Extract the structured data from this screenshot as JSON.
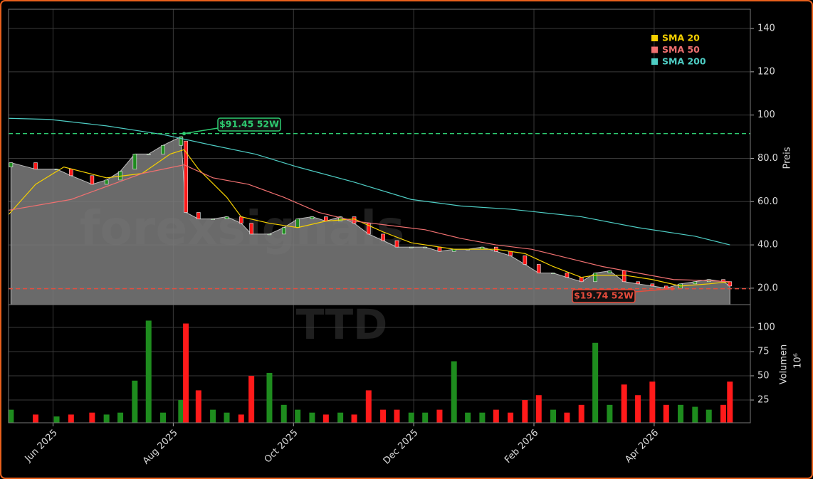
{
  "chart_data": {
    "type": "candlestick",
    "x": [
      4.3,
      4.71,
      5.06,
      5.3,
      5.65,
      5.89,
      6.12,
      6.36,
      6.59,
      6.83,
      7.13,
      7.21,
      7.42,
      7.66,
      7.89,
      8.13,
      8.3,
      8.6,
      8.84,
      9.07,
      9.31,
      9.54,
      9.78,
      10.01,
      10.25,
      10.49,
      10.72,
      10.96,
      11.19,
      11.43,
      11.67,
      11.9,
      12.14,
      12.37,
      12.61,
      12.85,
      13.08,
      13.32,
      13.55,
      13.79,
      14.02,
      14.26,
      14.5,
      14.73,
      14.97,
      15.2,
      15.44,
      15.68,
      15.91,
      16.15,
      16.26
    ],
    "open": [
      76,
      78,
      75,
      75,
      72,
      68,
      70,
      75,
      82,
      82,
      86,
      88,
      55,
      52,
      52,
      53,
      50,
      45,
      45,
      48,
      52,
      53,
      51,
      53,
      50,
      45,
      42,
      39,
      39,
      39,
      37,
      38,
      38,
      39,
      37,
      35,
      31,
      27,
      27,
      25,
      23,
      27,
      28,
      23,
      22,
      21,
      20,
      22,
      23,
      24,
      23
    ],
    "close": [
      78,
      75,
      75,
      72,
      68,
      70,
      74,
      82,
      82,
      86,
      90,
      55,
      52,
      52,
      53,
      50,
      45,
      45,
      48,
      52,
      53,
      51,
      53,
      50,
      45,
      42,
      39,
      39,
      39,
      37,
      38,
      38,
      39,
      37,
      35,
      31,
      27,
      27,
      25,
      23,
      27,
      28,
      23,
      22,
      21,
      20,
      22,
      23,
      24,
      23,
      21
    ],
    "volume": [
      15,
      10,
      8,
      10,
      12,
      10,
      12,
      45,
      107,
      12,
      25,
      104,
      35,
      15,
      12,
      10,
      50,
      53,
      20,
      15,
      12,
      10,
      12,
      10,
      35,
      15,
      15,
      12,
      12,
      15,
      65,
      12,
      12,
      15,
      12,
      25,
      30,
      15,
      12,
      20,
      84,
      20,
      41,
      30,
      44,
      20,
      20,
      18,
      15,
      20,
      44
    ],
    "up_color": "#1e8c1e",
    "down_color": "#ff1a1a",
    "area_color": "#7c7c7c",
    "xlim": [
      4.26,
      16.6
    ],
    "xticks": [
      {
        "value": 5,
        "label": "Jun 2025"
      },
      {
        "value": 7,
        "label": "Aug 2025"
      },
      {
        "value": 9,
        "label": "Oct 2025"
      },
      {
        "value": 11,
        "label": "Dec 2025"
      },
      {
        "value": 13,
        "label": "Feb 2026"
      },
      {
        "value": 15,
        "label": "Apr 2026"
      }
    ],
    "grid": true,
    "price_panel": {
      "ylabel": "Preis",
      "ylim": [
        12.4,
        148.9
      ],
      "yticks": [
        {
          "value": 20,
          "label": "20.0"
        },
        {
          "value": 40,
          "label": "40.0"
        },
        {
          "value": 60,
          "label": "60.0"
        },
        {
          "value": 80,
          "label": "80.0"
        },
        {
          "value": 100,
          "label": "100"
        },
        {
          "value": 120,
          "label": "120"
        },
        {
          "value": 140,
          "label": "140"
        }
      ]
    },
    "volume_panel": {
      "ylabel": "Volumen",
      "offset_label": "10⁶",
      "ylim": [
        1.5,
        123.5
      ],
      "yticks": [
        25,
        50,
        75,
        100
      ]
    },
    "sma": [
      {
        "name": "SMA 20",
        "color": "#f5d000",
        "x": [
          4.26,
          4.71,
          5.18,
          5.89,
          6.48,
          6.95,
          7.18,
          7.42,
          7.89,
          8.13,
          8.6,
          9.07,
          9.54,
          10.01,
          10.49,
          10.96,
          11.67,
          12.37,
          12.85,
          13.32,
          13.79,
          14.02,
          14.5,
          14.97,
          15.44,
          15.91,
          16.26
        ],
        "values": [
          54,
          68,
          76,
          71,
          73,
          82,
          84,
          75,
          62,
          53,
          50,
          48,
          51,
          52,
          46,
          41,
          38,
          38,
          36,
          30,
          25,
          26,
          26,
          24,
          21,
          22,
          23
        ]
      },
      {
        "name": "SMA 50",
        "color": "#f07070",
        "x": [
          4.26,
          5.3,
          5.89,
          6.48,
          7.18,
          7.66,
          8.25,
          8.84,
          9.42,
          10.01,
          10.6,
          11.19,
          11.78,
          12.37,
          12.96,
          13.55,
          14.14,
          14.73,
          15.32,
          15.91,
          16.26
        ],
        "values": [
          56,
          61,
          67,
          73,
          77,
          71,
          68,
          62,
          55,
          51,
          49,
          47,
          43,
          40,
          38,
          34,
          30,
          27,
          24,
          23.5,
          23
        ]
      },
      {
        "name": "SMA 200",
        "color": "#4ecdc4",
        "x": [
          4.26,
          4.94,
          5.89,
          6.83,
          7.66,
          8.36,
          9.07,
          10.01,
          10.96,
          11.78,
          12.61,
          13.79,
          14.73,
          15.68,
          16.26
        ],
        "values": [
          98.5,
          98,
          95,
          91,
          86,
          82,
          76,
          69,
          61,
          58,
          56.5,
          53,
          48,
          44,
          40
        ]
      }
    ],
    "high_52w": {
      "value": 91.45,
      "label": "$91.45 52W",
      "x": 7.18,
      "color": "#2ecc71"
    },
    "low_52w": {
      "value": 19.74,
      "label": "$19.74 52W",
      "x": 15.3,
      "color": "#e74c3c"
    },
    "watermark": [
      "forexsignals",
      "TTD"
    ]
  }
}
